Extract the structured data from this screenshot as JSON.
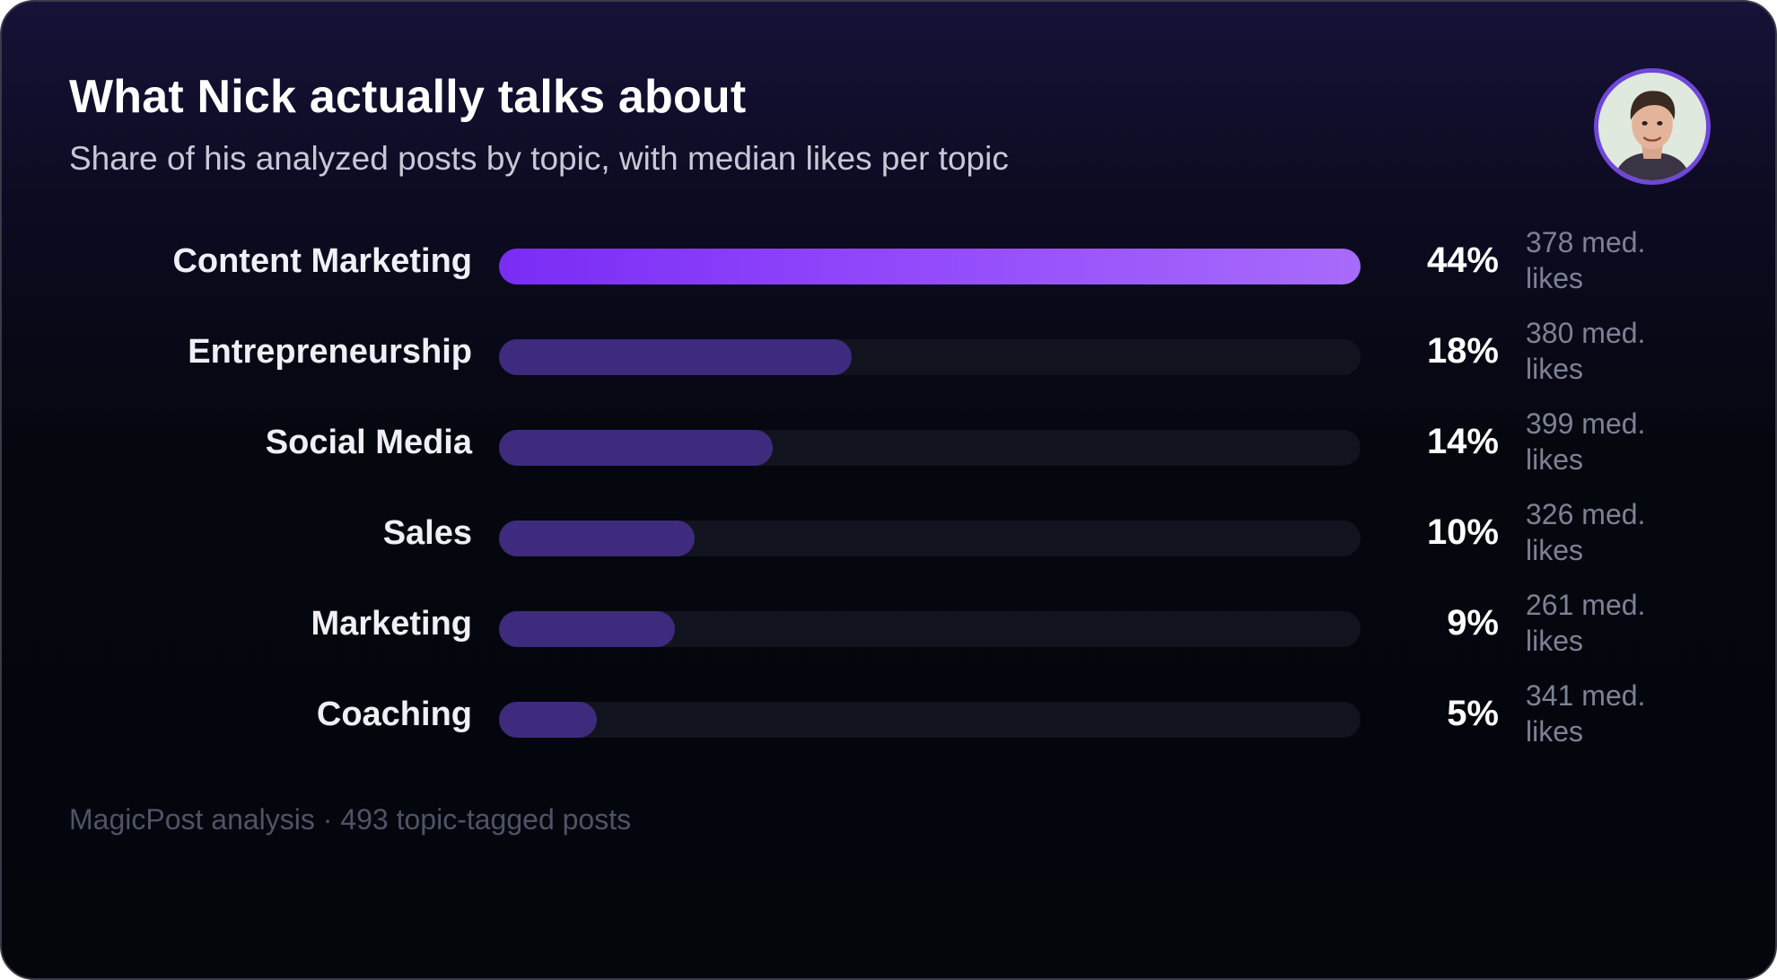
{
  "title": "What Nick actually talks about",
  "subtitle": "Share of his analyzed posts by topic, with median likes per topic",
  "footer": "MagicPost analysis · 493 topic-tagged posts",
  "avatar": {
    "icon": "profile-photo"
  },
  "colors": {
    "top_bar_start": "#7a2cf5",
    "top_bar_end": "#a86bfb",
    "bar": "#3e2b7d",
    "track": "#11141e"
  },
  "chart_data": {
    "type": "bar",
    "orientation": "horizontal",
    "xlim": [
      0,
      44
    ],
    "categories": [
      "Content Marketing",
      "Entrepreneurship",
      "Social Media",
      "Sales",
      "Marketing",
      "Coaching"
    ],
    "values": [
      44,
      18,
      14,
      10,
      9,
      5
    ],
    "value_labels": [
      "44%",
      "18%",
      "14%",
      "10%",
      "9%",
      "5%"
    ],
    "median_likes_labels": [
      "378 med. likes",
      "380 med. likes",
      "399 med. likes",
      "326 med. likes",
      "261 med. likes",
      "341 med. likes"
    ]
  }
}
